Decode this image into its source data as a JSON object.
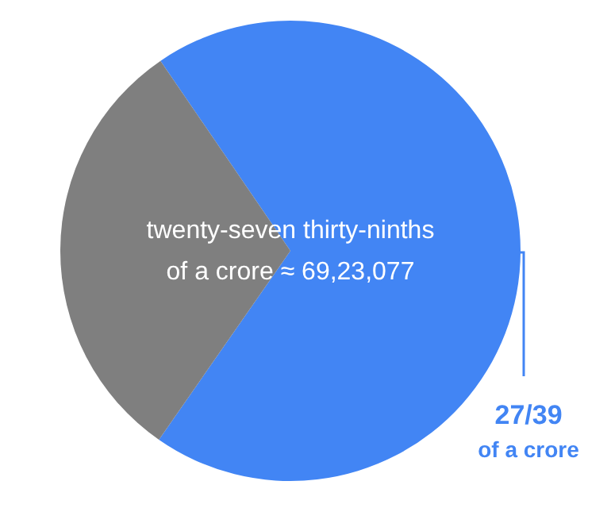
{
  "chart_data": {
    "type": "pie",
    "categories": [
      null,
      null
    ],
    "values": [
      69.23,
      30.77
    ],
    "colors": [
      "#4285f4",
      "#7f7f7f"
    ],
    "annotations": [
      "twenty-seven thirty-ninths\nof a crore ≈ 69,23,077",
      "27/39\nof a crore"
    ]
  }
}
